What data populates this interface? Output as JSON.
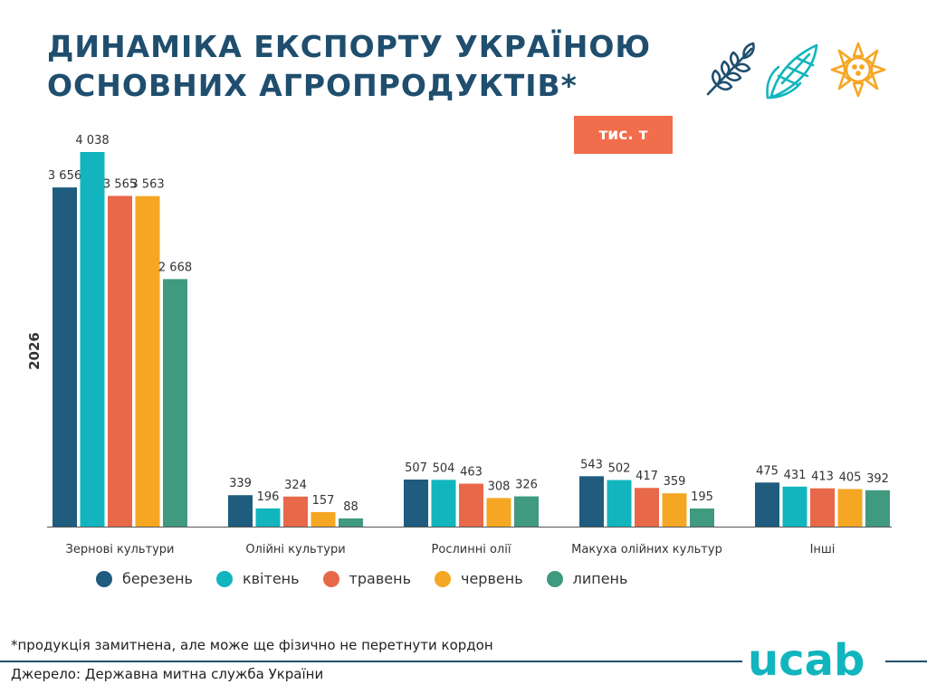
{
  "header": {
    "title_line1": "ДИНАМІКА ЕКСПОРТУ УКРАЇНОЮ",
    "title_line2": "ОСНОВНИХ АГРОПРОДУКТІВ*",
    "icons": [
      "wheat-icon",
      "corn-icon",
      "sunflower-icon"
    ]
  },
  "unit_badge": "тис. т",
  "year_label": "2026",
  "colors": {
    "березень": "#1f5c7e",
    "квітень": "#12b5bd",
    "травень": "#e8684a",
    "червень": "#f5a623",
    "липень": "#3f9a7f",
    "title": "#1f4e6e",
    "badge": "#f26d4b"
  },
  "chart_data": {
    "type": "bar",
    "categories": [
      "Зернові культури",
      "Олійні культури",
      "Рослинні олії",
      "Макуха олійних культур",
      "Інші"
    ],
    "series": [
      {
        "name": "березень",
        "values": [
          3656,
          339,
          507,
          543,
          475
        ],
        "labels": [
          "3 656",
          "339",
          "507",
          "543",
          "475"
        ]
      },
      {
        "name": "квітень",
        "values": [
          4038,
          196,
          504,
          502,
          431
        ],
        "labels": [
          "4 038",
          "196",
          "504",
          "502",
          "431"
        ]
      },
      {
        "name": "травень",
        "values": [
          3565,
          324,
          463,
          417,
          413
        ],
        "labels": [
          "3 565",
          "324",
          "463",
          "417",
          "413"
        ]
      },
      {
        "name": "червень",
        "values": [
          3563,
          157,
          308,
          359,
          405
        ],
        "labels": [
          "3 563",
          "157",
          "308",
          "359",
          "405"
        ]
      },
      {
        "name": "липень",
        "values": [
          2668,
          88,
          326,
          195,
          392
        ],
        "labels": [
          "2 668",
          "88",
          "326",
          "195",
          "392"
        ]
      }
    ],
    "ylim": [
      0,
      4038
    ],
    "grid": false,
    "legend_position": "bottom"
  },
  "footer": {
    "note": "*продукція замитнена, але може ще фізично не перетнути кордон",
    "source": "Джерело: Державна митна служба України",
    "logo": "ucab"
  }
}
